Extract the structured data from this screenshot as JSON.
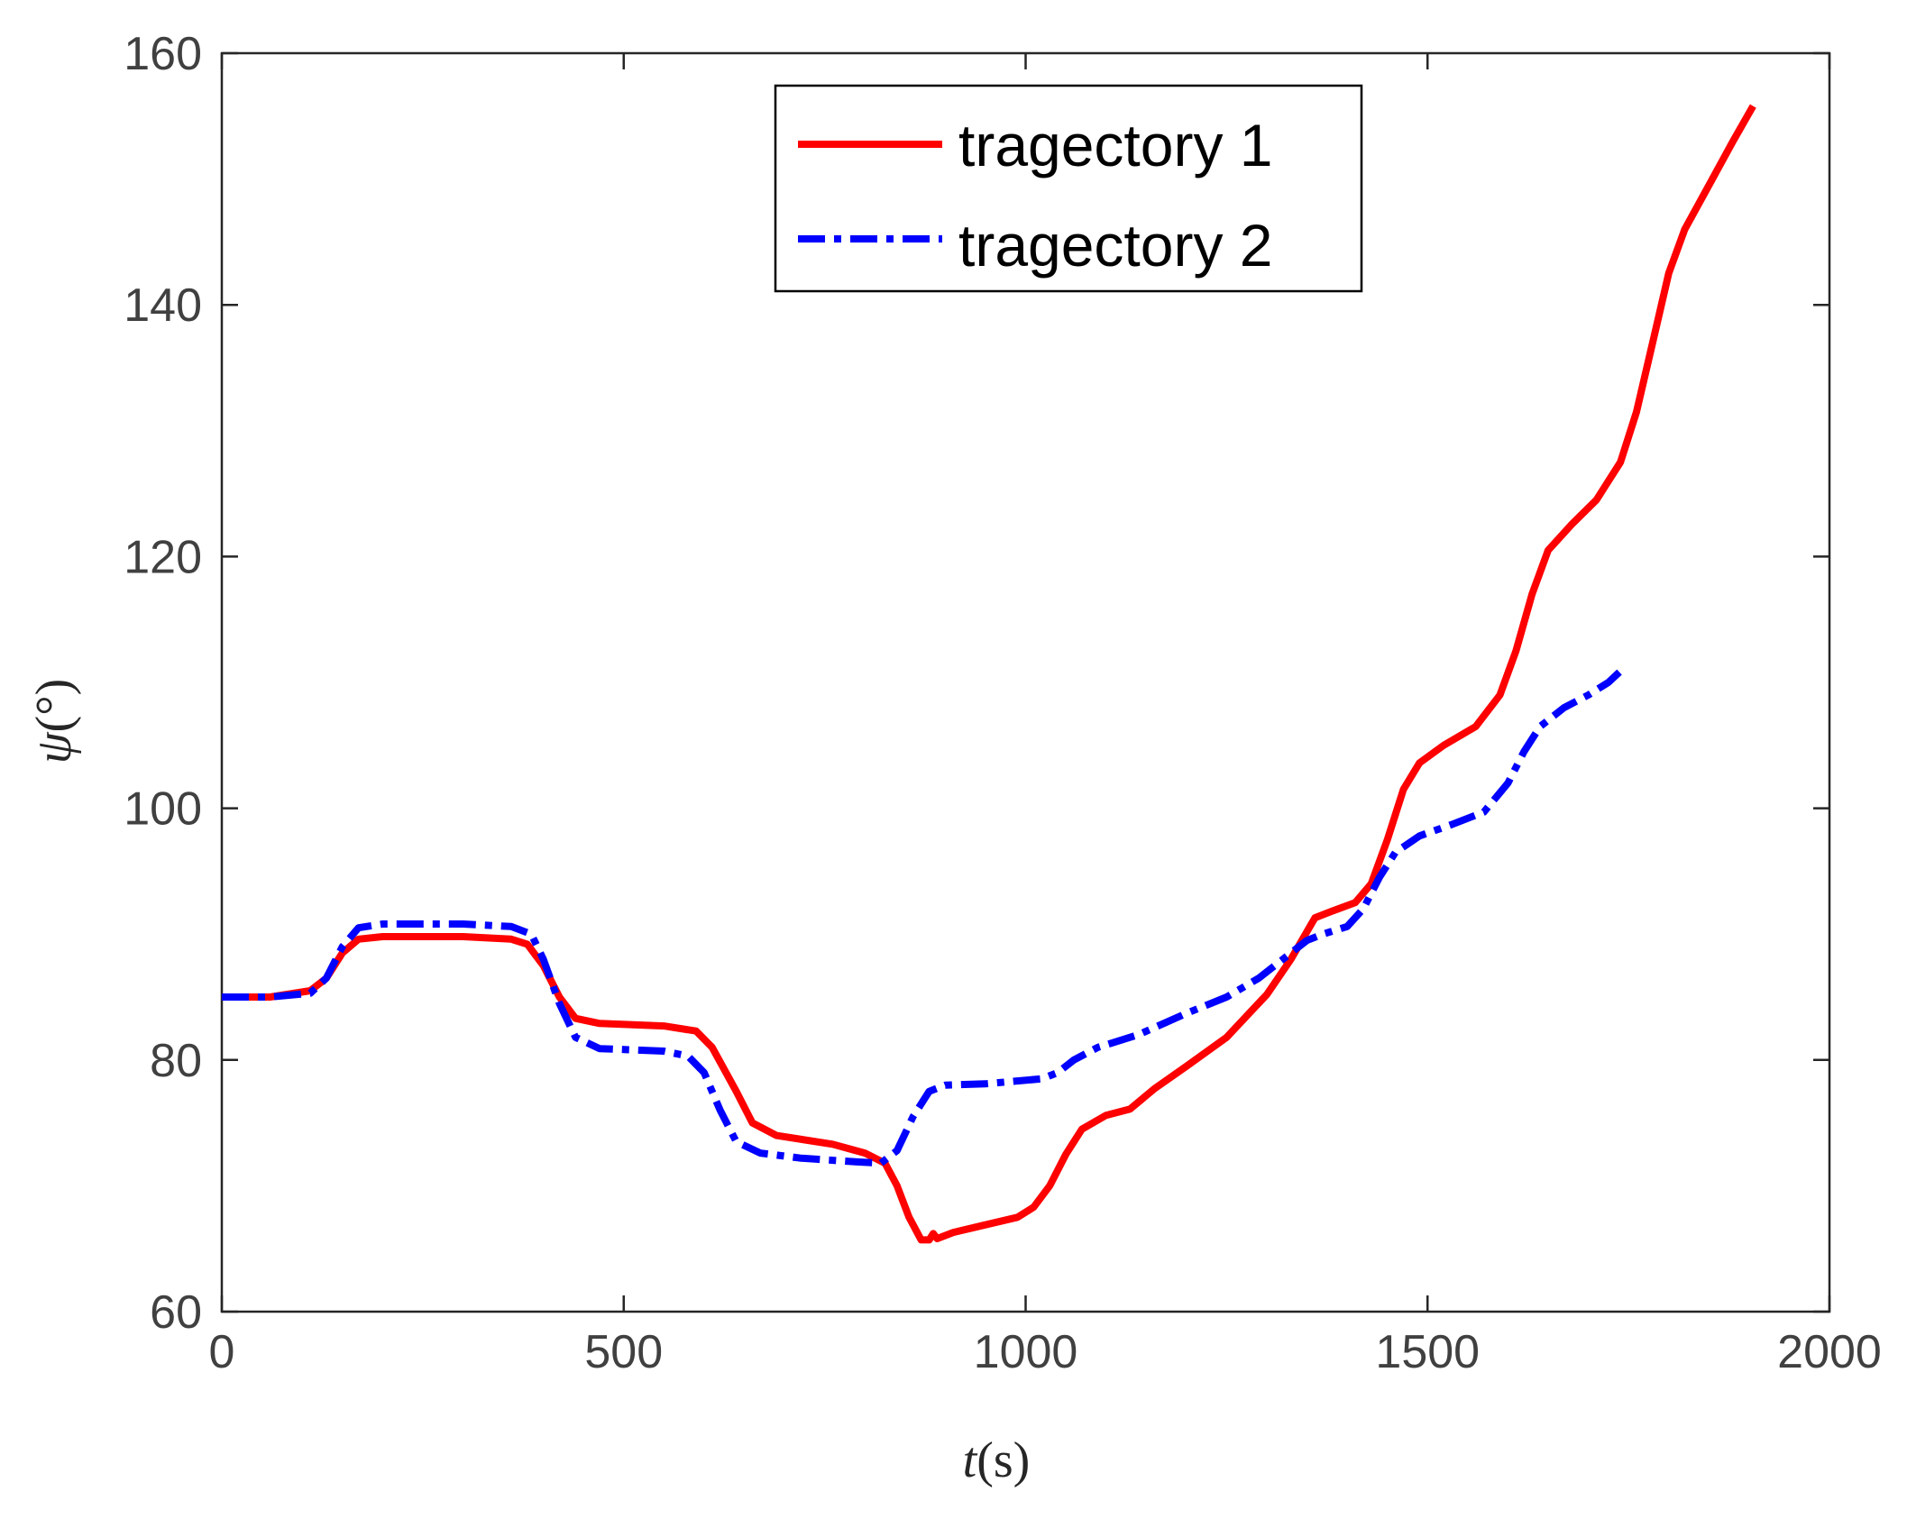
{
  "chart_data": {
    "type": "line",
    "xlabel": {
      "var": "t",
      "unit": "(s)"
    },
    "ylabel": {
      "var": "ψ",
      "unit": "(°)"
    },
    "xlim": [
      0,
      2000
    ],
    "ylim": [
      60,
      160
    ],
    "xticks": [
      0,
      500,
      1000,
      1500,
      2000
    ],
    "yticks": [
      60,
      80,
      100,
      120,
      140,
      160
    ],
    "grid": false,
    "legend_position": "top-center",
    "series": [
      {
        "name": "tragectory 1",
        "color": "#ff0000",
        "style": "solid",
        "points": [
          [
            0,
            85
          ],
          [
            60,
            85
          ],
          [
            110,
            85.5
          ],
          [
            130,
            86.5
          ],
          [
            150,
            88.5
          ],
          [
            170,
            89.6
          ],
          [
            200,
            89.8
          ],
          [
            300,
            89.8
          ],
          [
            360,
            89.6
          ],
          [
            380,
            89.2
          ],
          [
            400,
            87.5
          ],
          [
            420,
            85
          ],
          [
            440,
            83.3
          ],
          [
            470,
            82.9
          ],
          [
            550,
            82.7
          ],
          [
            590,
            82.3
          ],
          [
            610,
            81
          ],
          [
            640,
            77.5
          ],
          [
            660,
            75
          ],
          [
            690,
            74
          ],
          [
            760,
            73.3
          ],
          [
            800,
            72.6
          ],
          [
            825,
            71.8
          ],
          [
            840,
            70
          ],
          [
            855,
            67.5
          ],
          [
            870,
            65.7
          ],
          [
            880,
            65.7
          ],
          [
            885,
            66.2
          ],
          [
            890,
            65.8
          ],
          [
            910,
            66.3
          ],
          [
            950,
            66.9
          ],
          [
            990,
            67.5
          ],
          [
            1010,
            68.3
          ],
          [
            1030,
            70
          ],
          [
            1050,
            72.5
          ],
          [
            1070,
            74.5
          ],
          [
            1100,
            75.6
          ],
          [
            1130,
            76.1
          ],
          [
            1160,
            77.7
          ],
          [
            1200,
            79.5
          ],
          [
            1250,
            81.8
          ],
          [
            1300,
            85.2
          ],
          [
            1330,
            88
          ],
          [
            1360,
            91.3
          ],
          [
            1380,
            91.8
          ],
          [
            1410,
            92.5
          ],
          [
            1430,
            94
          ],
          [
            1450,
            97.5
          ],
          [
            1470,
            101.5
          ],
          [
            1490,
            103.6
          ],
          [
            1520,
            105
          ],
          [
            1560,
            106.5
          ],
          [
            1590,
            109
          ],
          [
            1610,
            112.5
          ],
          [
            1630,
            117
          ],
          [
            1650,
            120.5
          ],
          [
            1680,
            122.6
          ],
          [
            1710,
            124.5
          ],
          [
            1740,
            127.5
          ],
          [
            1760,
            131.5
          ],
          [
            1780,
            137
          ],
          [
            1800,
            142.5
          ],
          [
            1820,
            146
          ],
          [
            1850,
            149.5
          ],
          [
            1880,
            153
          ],
          [
            1905,
            155.8
          ]
        ]
      },
      {
        "name": "tragectory 2",
        "color": "#0000ff",
        "style": "dashdot",
        "points": [
          [
            0,
            85
          ],
          [
            60,
            85
          ],
          [
            110,
            85.3
          ],
          [
            130,
            86.5
          ],
          [
            150,
            89
          ],
          [
            170,
            90.5
          ],
          [
            200,
            90.8
          ],
          [
            300,
            90.8
          ],
          [
            360,
            90.6
          ],
          [
            385,
            90
          ],
          [
            400,
            88
          ],
          [
            420,
            84.5
          ],
          [
            440,
            81.8
          ],
          [
            470,
            80.9
          ],
          [
            550,
            80.7
          ],
          [
            580,
            80.3
          ],
          [
            600,
            79
          ],
          [
            620,
            76
          ],
          [
            640,
            73.5
          ],
          [
            670,
            72.6
          ],
          [
            720,
            72.2
          ],
          [
            790,
            71.9
          ],
          [
            820,
            71.8
          ],
          [
            840,
            72.8
          ],
          [
            860,
            75.5
          ],
          [
            880,
            77.5
          ],
          [
            900,
            78
          ],
          [
            950,
            78.1
          ],
          [
            1020,
            78.5
          ],
          [
            1040,
            79
          ],
          [
            1060,
            80
          ],
          [
            1090,
            81
          ],
          [
            1140,
            82
          ],
          [
            1200,
            83.7
          ],
          [
            1250,
            85
          ],
          [
            1290,
            86.5
          ],
          [
            1320,
            88
          ],
          [
            1350,
            89.5
          ],
          [
            1370,
            90
          ],
          [
            1400,
            90.6
          ],
          [
            1420,
            92
          ],
          [
            1440,
            94.5
          ],
          [
            1460,
            96.5
          ],
          [
            1490,
            97.8
          ],
          [
            1530,
            98.7
          ],
          [
            1570,
            99.7
          ],
          [
            1600,
            102
          ],
          [
            1620,
            104.5
          ],
          [
            1640,
            106.5
          ],
          [
            1670,
            108
          ],
          [
            1700,
            109
          ],
          [
            1725,
            110
          ],
          [
            1745,
            111.2
          ]
        ]
      }
    ]
  }
}
